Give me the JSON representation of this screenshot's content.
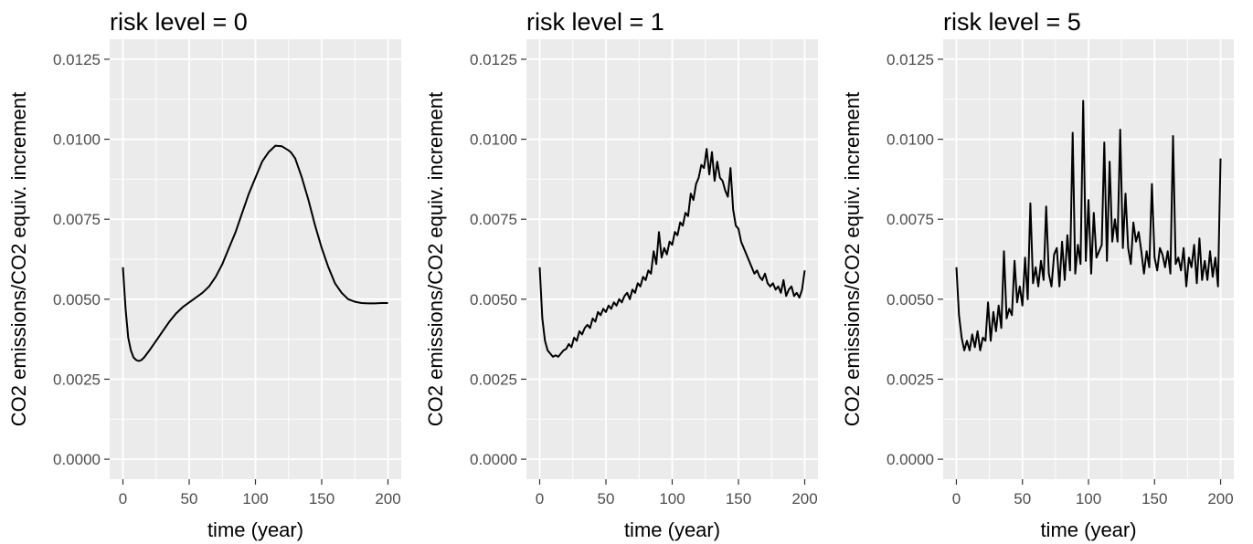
{
  "chart_data": [
    {
      "type": "line",
      "title": "risk level = 0",
      "xlabel": "time (year)",
      "ylabel": "CO2 emissions/CO2 equiv. increment",
      "xlim": [
        0,
        200
      ],
      "ylim": [
        0,
        0.0125
      ],
      "x_ticks": [
        "0",
        "50",
        "100",
        "150",
        "200"
      ],
      "y_ticks": [
        "0.0000",
        "0.0025",
        "0.0050",
        "0.0075",
        "0.0100",
        "0.0125"
      ],
      "grid": true,
      "series": [
        {
          "x": [
            0,
            2,
            4,
            6,
            8,
            10,
            12,
            14,
            16,
            20,
            25,
            30,
            35,
            40,
            45,
            50,
            55,
            60,
            65,
            70,
            75,
            80,
            85,
            90,
            95,
            100,
            105,
            110,
            115,
            120,
            125,
            127,
            130,
            135,
            140,
            145,
            150,
            155,
            160,
            165,
            170,
            175,
            180,
            185,
            190,
            195,
            200
          ],
          "y": [
            0.006,
            0.0047,
            0.0038,
            0.0034,
            0.00318,
            0.0031,
            0.00307,
            0.0031,
            0.00318,
            0.0034,
            0.0037,
            0.004,
            0.0043,
            0.00455,
            0.00475,
            0.0049,
            0.00505,
            0.0052,
            0.0054,
            0.0057,
            0.0061,
            0.0066,
            0.0071,
            0.0077,
            0.0083,
            0.0088,
            0.0093,
            0.0096,
            0.0098,
            0.00978,
            0.00965,
            0.00958,
            0.0094,
            0.0088,
            0.0081,
            0.0073,
            0.0066,
            0.006,
            0.0055,
            0.0052,
            0.005,
            0.00492,
            0.00488,
            0.00487,
            0.00487,
            0.00488,
            0.00488
          ]
        }
      ]
    },
    {
      "type": "line",
      "title": "risk level = 1",
      "xlabel": "time (year)",
      "ylabel": "CO2 emissions/CO2 equiv. increment",
      "xlim": [
        0,
        200
      ],
      "ylim": [
        0,
        0.0125
      ],
      "x_ticks": [
        "0",
        "50",
        "100",
        "150",
        "200"
      ],
      "y_ticks": [
        "0.0000",
        "0.0025",
        "0.0050",
        "0.0075",
        "0.0100",
        "0.0125"
      ],
      "grid": true,
      "series": [
        {
          "x": [
            0,
            2,
            4,
            6,
            8,
            10,
            12,
            14,
            16,
            18,
            20,
            22,
            24,
            26,
            28,
            30,
            32,
            34,
            36,
            38,
            40,
            42,
            44,
            46,
            48,
            50,
            52,
            54,
            56,
            58,
            60,
            62,
            64,
            66,
            68,
            70,
            72,
            74,
            76,
            78,
            80,
            82,
            84,
            86,
            88,
            90,
            92,
            94,
            96,
            98,
            100,
            102,
            104,
            106,
            108,
            110,
            112,
            114,
            116,
            118,
            120,
            122,
            124,
            126,
            128,
            130,
            132,
            134,
            136,
            138,
            140,
            142,
            144,
            146,
            148,
            150,
            152,
            154,
            156,
            158,
            160,
            162,
            164,
            166,
            168,
            170,
            172,
            174,
            176,
            178,
            180,
            182,
            184,
            186,
            188,
            190,
            192,
            194,
            196,
            198,
            200
          ],
          "y": [
            0.006,
            0.0044,
            0.0037,
            0.0034,
            0.0033,
            0.0032,
            0.00325,
            0.0032,
            0.0033,
            0.0034,
            0.00345,
            0.0036,
            0.0035,
            0.0038,
            0.0037,
            0.004,
            0.0039,
            0.0041,
            0.0042,
            0.0041,
            0.0044,
            0.0043,
            0.0046,
            0.0045,
            0.0047,
            0.0046,
            0.0048,
            0.0047,
            0.0049,
            0.0048,
            0.005,
            0.0049,
            0.0051,
            0.0052,
            0.005,
            0.0053,
            0.0052,
            0.0055,
            0.0054,
            0.0057,
            0.0056,
            0.0059,
            0.0058,
            0.0065,
            0.0061,
            0.0071,
            0.0063,
            0.0066,
            0.0064,
            0.0068,
            0.0067,
            0.0071,
            0.007,
            0.0074,
            0.0073,
            0.0077,
            0.0076,
            0.0083,
            0.0081,
            0.0086,
            0.0088,
            0.0092,
            0.0091,
            0.0097,
            0.0089,
            0.0096,
            0.0087,
            0.0093,
            0.0088,
            0.0087,
            0.0084,
            0.0082,
            0.0091,
            0.0078,
            0.0073,
            0.0072,
            0.0068,
            0.0066,
            0.0064,
            0.0062,
            0.006,
            0.0058,
            0.0059,
            0.0057,
            0.0056,
            0.0058,
            0.0055,
            0.0054,
            0.0055,
            0.0053,
            0.0054,
            0.0052,
            0.0056,
            0.0051,
            0.0053,
            0.0054,
            0.0051,
            0.0052,
            0.00505,
            0.0053,
            0.0059
          ]
        }
      ]
    },
    {
      "type": "line",
      "title": "risk level = 5",
      "xlabel": "time (year)",
      "ylabel": "CO2 emissions/CO2 equiv. increment",
      "xlim": [
        0,
        200
      ],
      "ylim": [
        0,
        0.0125
      ],
      "x_ticks": [
        "0",
        "50",
        "100",
        "150",
        "200"
      ],
      "y_ticks": [
        "0.0000",
        "0.0025",
        "0.0050",
        "0.0075",
        "0.0100",
        "0.0125"
      ],
      "grid": true,
      "series": [
        {
          "x": [
            0,
            2,
            4,
            6,
            8,
            10,
            12,
            14,
            16,
            18,
            20,
            22,
            24,
            26,
            28,
            30,
            32,
            34,
            36,
            38,
            40,
            42,
            44,
            46,
            48,
            50,
            52,
            54,
            56,
            58,
            60,
            62,
            64,
            66,
            68,
            70,
            72,
            74,
            76,
            78,
            80,
            82,
            84,
            86,
            88,
            90,
            92,
            94,
            96,
            98,
            100,
            102,
            104,
            106,
            108,
            110,
            112,
            114,
            116,
            118,
            120,
            122,
            124,
            126,
            128,
            130,
            132,
            134,
            136,
            138,
            140,
            142,
            144,
            146,
            148,
            150,
            152,
            154,
            156,
            158,
            160,
            162,
            164,
            166,
            168,
            170,
            172,
            174,
            176,
            178,
            180,
            182,
            184,
            186,
            188,
            190,
            192,
            194,
            196,
            198,
            200
          ],
          "y": [
            0.006,
            0.0045,
            0.0038,
            0.0034,
            0.0037,
            0.0034,
            0.0039,
            0.0035,
            0.004,
            0.0034,
            0.0038,
            0.0037,
            0.0049,
            0.0037,
            0.0046,
            0.004,
            0.0048,
            0.0041,
            0.0065,
            0.0044,
            0.0047,
            0.0045,
            0.0062,
            0.0049,
            0.0054,
            0.0048,
            0.0063,
            0.005,
            0.008,
            0.0055,
            0.006,
            0.0054,
            0.0062,
            0.0056,
            0.0079,
            0.0058,
            0.0054,
            0.0064,
            0.0066,
            0.0054,
            0.0068,
            0.0056,
            0.007,
            0.0059,
            0.0102,
            0.0058,
            0.0067,
            0.0061,
            0.0112,
            0.0062,
            0.0081,
            0.0058,
            0.0077,
            0.0063,
            0.0065,
            0.0067,
            0.0099,
            0.0062,
            0.0093,
            0.0068,
            0.0075,
            0.0068,
            0.0103,
            0.0066,
            0.0083,
            0.0066,
            0.0061,
            0.0074,
            0.0068,
            0.0071,
            0.0065,
            0.0058,
            0.0065,
            0.006,
            0.0086,
            0.0063,
            0.0059,
            0.0066,
            0.0064,
            0.006,
            0.0065,
            0.0058,
            0.0101,
            0.0061,
            0.0063,
            0.0059,
            0.0066,
            0.0054,
            0.0063,
            0.006,
            0.0067,
            0.0055,
            0.0069,
            0.0056,
            0.0062,
            0.0056,
            0.0065,
            0.0057,
            0.0063,
            0.0054,
            0.0094
          ]
        }
      ]
    }
  ]
}
